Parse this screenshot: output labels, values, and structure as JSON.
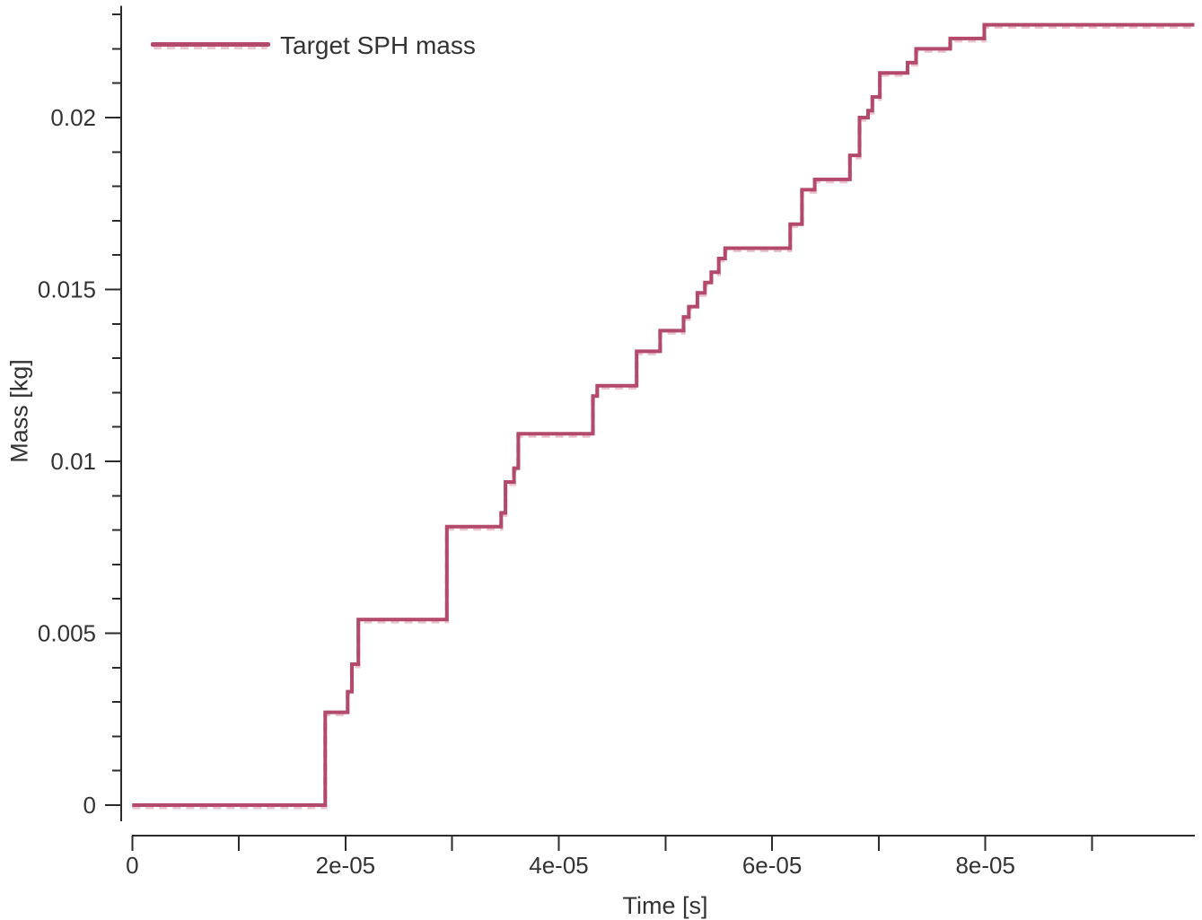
{
  "figure": {
    "background": "#ffffff",
    "text_color": "#333333",
    "axis_color": "#2b2b2b"
  },
  "legend": {
    "items": [
      {
        "label": "Target SPH mass",
        "color": "#b44a6b"
      }
    ]
  },
  "chart_data": {
    "type": "line",
    "line_style": "steps-post",
    "title": "",
    "xlabel": "Time [s]",
    "ylabel": "Mass [kg]",
    "xlim": [
      0,
      0.0001
    ],
    "ylim": [
      0,
      0.02325
    ],
    "grid": false,
    "legend_position": "top-left",
    "x_ticks": [
      {
        "value": 0,
        "label": "0"
      },
      {
        "value": 1e-05,
        "label": ""
      },
      {
        "value": 2e-05,
        "label": "2e-05"
      },
      {
        "value": 3e-05,
        "label": ""
      },
      {
        "value": 4e-05,
        "label": "4e-05"
      },
      {
        "value": 5e-05,
        "label": ""
      },
      {
        "value": 6e-05,
        "label": "6e-05"
      },
      {
        "value": 7e-05,
        "label": ""
      },
      {
        "value": 8e-05,
        "label": "8e-05"
      },
      {
        "value": 9e-05,
        "label": ""
      }
    ],
    "y_ticks_major": [
      {
        "value": 0,
        "label": "0"
      },
      {
        "value": 0.005,
        "label": "0.005"
      },
      {
        "value": 0.01,
        "label": "0.01"
      },
      {
        "value": 0.015,
        "label": "0.015"
      },
      {
        "value": 0.02,
        "label": "0.02"
      }
    ],
    "y_minor_tick_step": 0.001,
    "y_minor_tick_max": 0.023,
    "series": [
      {
        "name": "Target SPH mass",
        "color": "#b44a6b",
        "underlay_color": "#ecc2cf",
        "steps_time_mass": [
          [
            0,
            0
          ],
          [
            1.81e-05,
            0.0027
          ],
          [
            2.02e-05,
            0.0033
          ],
          [
            2.06e-05,
            0.0041
          ],
          [
            2.12e-05,
            0.0054
          ],
          [
            2.95e-05,
            0.0081
          ],
          [
            3.46e-05,
            0.0085
          ],
          [
            3.5e-05,
            0.0094
          ],
          [
            3.58e-05,
            0.0098
          ],
          [
            3.62e-05,
            0.0108
          ],
          [
            4.32e-05,
            0.0119
          ],
          [
            4.36e-05,
            0.0122
          ],
          [
            4.73e-05,
            0.0132
          ],
          [
            4.95e-05,
            0.0138
          ],
          [
            5.17e-05,
            0.0142
          ],
          [
            5.22e-05,
            0.0145
          ],
          [
            5.3e-05,
            0.0149
          ],
          [
            5.37e-05,
            0.0152
          ],
          [
            5.43e-05,
            0.0155
          ],
          [
            5.5e-05,
            0.0159
          ],
          [
            5.56e-05,
            0.0162
          ],
          [
            6.17e-05,
            0.0169
          ],
          [
            6.28e-05,
            0.0179
          ],
          [
            6.4e-05,
            0.0182
          ],
          [
            6.73e-05,
            0.0189
          ],
          [
            6.82e-05,
            0.02
          ],
          [
            6.9e-05,
            0.0202
          ],
          [
            6.94e-05,
            0.0206
          ],
          [
            7.01e-05,
            0.0213
          ],
          [
            7.27e-05,
            0.0216
          ],
          [
            7.35e-05,
            0.022
          ],
          [
            7.67e-05,
            0.0223
          ],
          [
            7.99e-05,
            0.0227
          ]
        ],
        "t_end": 9.96e-05
      }
    ]
  }
}
